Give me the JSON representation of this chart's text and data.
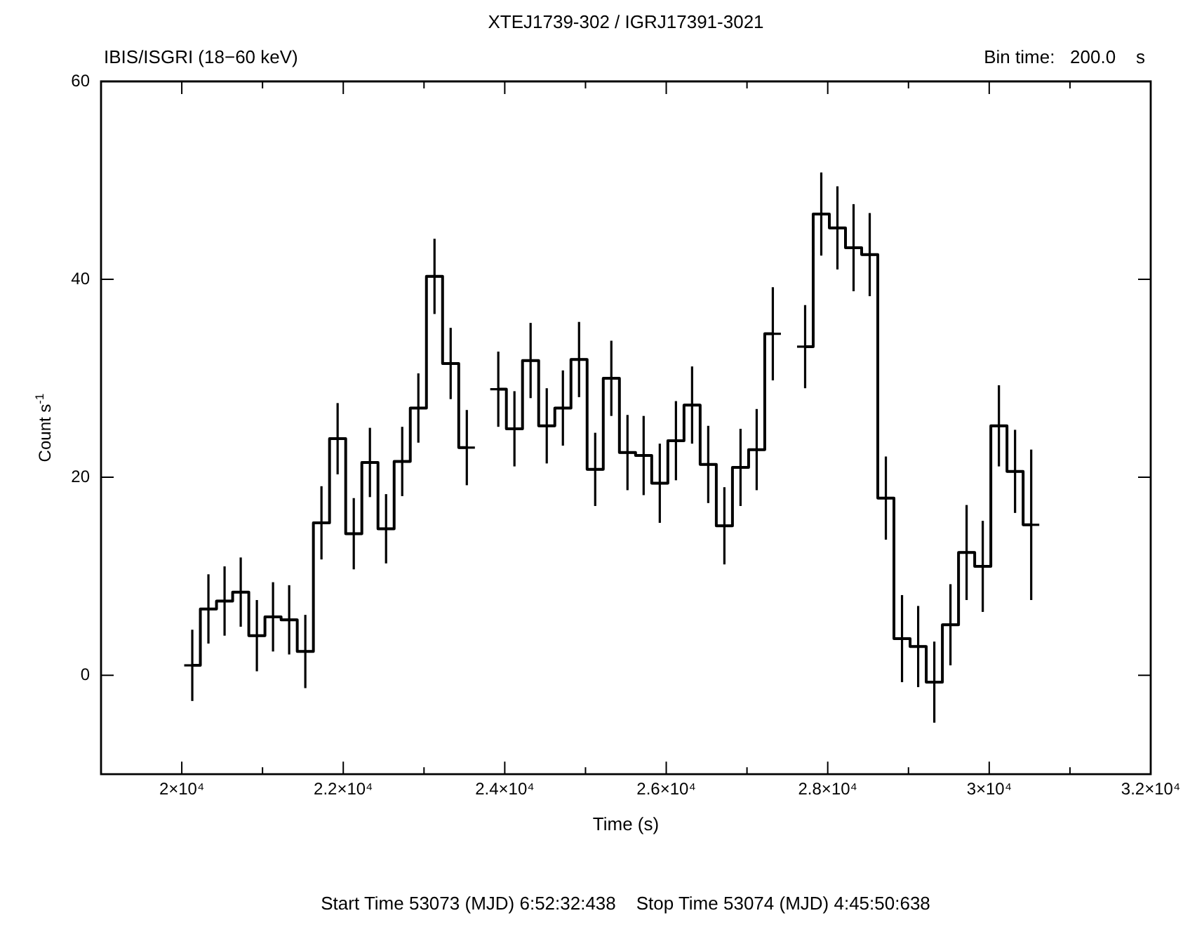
{
  "chart_data": {
    "type": "step",
    "title": "XTEJ1739-302 / IGRJ17391-3021",
    "subtitle": "IBIS/ISGRI (18−60 keV)",
    "xlabel": "Time (s)",
    "ylabel": "Count s$^{-1}$",
    "annotations": [
      "Bin time:   200.0    s",
      "Start Time 53073 (MJD) 6:52:32:438    Stop Time 53074 (MJD) 4:45:50:638"
    ],
    "xlim": [
      19000,
      32000
    ],
    "ylim": [
      -10,
      60
    ],
    "xticks": [
      {
        "value": 20000,
        "label": "2×10⁴"
      },
      {
        "value": 21000,
        "label": null
      },
      {
        "value": 22000,
        "label": "2.2×10⁴"
      },
      {
        "value": 23000,
        "label": null
      },
      {
        "value": 24000,
        "label": "2.4×10⁴"
      },
      {
        "value": 25000,
        "label": null
      },
      {
        "value": 26000,
        "label": "2.6×10⁴"
      },
      {
        "value": 27000,
        "label": null
      },
      {
        "value": 28000,
        "label": "2.8×10⁴"
      },
      {
        "value": 29000,
        "label": null
      },
      {
        "value": 30000,
        "label": "3×10⁴"
      },
      {
        "value": 31000,
        "label": null
      },
      {
        "value": 32000,
        "label": "3.2×10⁴"
      }
    ],
    "yticks": [
      0,
      20,
      40,
      60
    ],
    "series": [
      {
        "color": "#000000",
        "x": [
          20130,
          20330,
          20530,
          20730,
          20930,
          21130,
          21330,
          21530,
          21730,
          21930,
          22130,
          22330,
          22530,
          22730,
          22930,
          23130,
          23330,
          23530,
          23730,
          23920,
          24120,
          24320,
          24520,
          24720,
          24920,
          25120,
          25320,
          25520,
          25720,
          25920,
          26120,
          26320,
          26520,
          26720,
          26920,
          27120,
          27320,
          27520,
          27720,
          27920,
          28120,
          28320,
          28520,
          28720,
          28920,
          29120,
          29320,
          29520,
          29720,
          29920,
          30120,
          30320,
          30520
        ],
        "values": [
          1.0,
          6.7,
          7.5,
          8.4,
          4.0,
          5.9,
          5.6,
          2.4,
          15.4,
          23.9,
          14.3,
          21.5,
          14.8,
          21.6,
          27.0,
          40.3,
          31.5,
          23.0,
          null,
          28.9,
          24.9,
          31.8,
          25.2,
          27.0,
          31.9,
          20.8,
          30.0,
          22.5,
          22.2,
          19.4,
          23.7,
          27.3,
          21.3,
          15.1,
          21.0,
          22.8,
          34.5,
          null,
          33.2,
          46.6,
          45.2,
          43.2,
          42.5,
          17.9,
          3.7,
          2.9,
          -0.7,
          5.1,
          12.4,
          11.0,
          25.2,
          20.6,
          15.2
        ],
        "errors": [
          3.6,
          3.5,
          3.5,
          3.5,
          3.6,
          3.5,
          3.5,
          3.7,
          3.7,
          3.6,
          3.6,
          3.5,
          3.5,
          3.5,
          3.5,
          3.8,
          3.6,
          3.8,
          null,
          3.8,
          3.8,
          3.8,
          3.8,
          3.8,
          3.8,
          3.7,
          3.8,
          3.8,
          4.0,
          4.0,
          4.0,
          3.9,
          3.9,
          3.9,
          3.9,
          4.1,
          4.7,
          null,
          4.2,
          4.2,
          4.2,
          4.4,
          4.2,
          4.2,
          4.4,
          4.1,
          4.1,
          4.1,
          4.8,
          4.6,
          4.1,
          4.2,
          7.6
        ],
        "xerrors": [
          100,
          100,
          100,
          100,
          100,
          100,
          100,
          100,
          100,
          100,
          100,
          100,
          100,
          100,
          100,
          100,
          100,
          100,
          null,
          100,
          100,
          100,
          100,
          100,
          100,
          100,
          100,
          100,
          100,
          100,
          100,
          100,
          100,
          100,
          100,
          100,
          100,
          null,
          100,
          100,
          100,
          100,
          100,
          100,
          100,
          100,
          100,
          100,
          100,
          100,
          100,
          100,
          100
        ]
      }
    ]
  }
}
